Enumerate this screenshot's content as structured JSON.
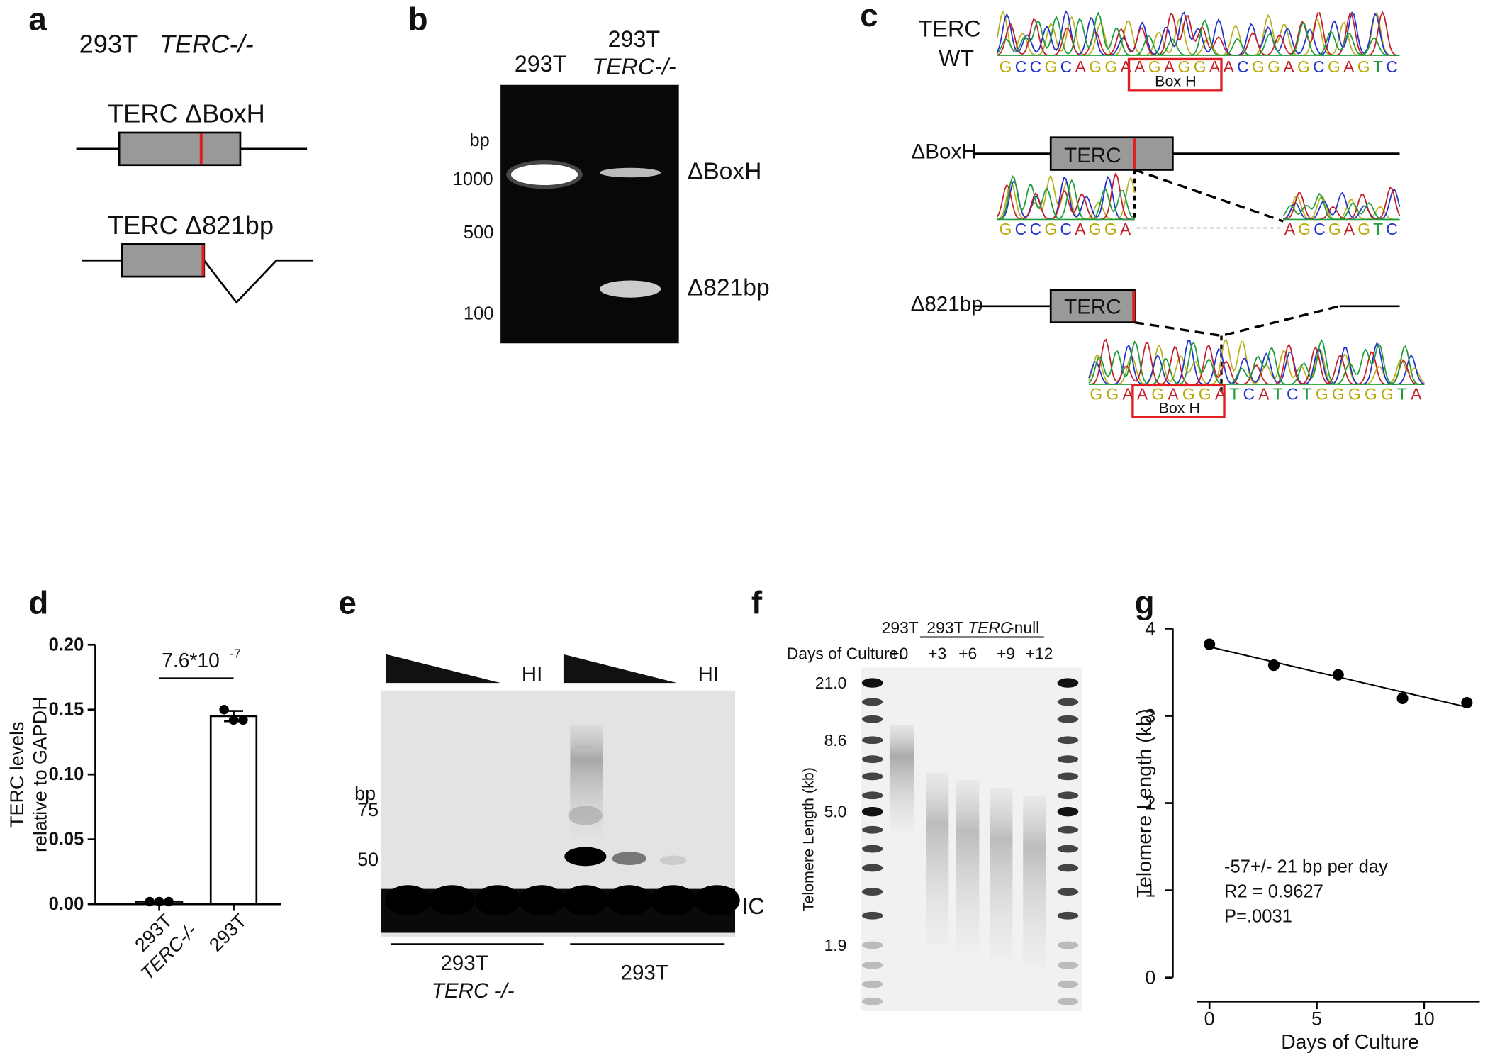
{
  "panels": {
    "a": {
      "label": "a",
      "title": "293T",
      "title_italic": "TERC-/-",
      "constructs": [
        "TERC ΔBoxH",
        "TERC Δ821bp"
      ]
    },
    "b": {
      "label": "b",
      "lanes": [
        "293T",
        "293T"
      ],
      "lane_sublabel": "TERC-/-",
      "unit": "bp",
      "ladder": [
        "1000",
        "500",
        "100"
      ],
      "bands": [
        "ΔBoxH",
        "Δ821bp"
      ]
    },
    "c": {
      "label": "c",
      "wt": {
        "name": [
          "TERC",
          "WT"
        ],
        "sequence": "GCCGCAGGAAGAGGAACGGAGCGAGTC",
        "box": "Box H"
      },
      "boxh": {
        "name": "ΔBoxH",
        "gene": "TERC",
        "sequence_left": "GCCGCAGGA",
        "sequence_right": "AGCGAGTC"
      },
      "del821": {
        "name": "Δ821bp",
        "gene": "TERC",
        "sequence": "GGAAGAGGATCATCTGGGGGTA",
        "box": "Box H"
      }
    },
    "e": {
      "label": "e",
      "heat_inactivated": [
        "HI",
        "HI"
      ],
      "unit": "bp",
      "ladder": [
        "75",
        "50"
      ],
      "control": "IC",
      "groups": [
        "293T",
        "293T"
      ],
      "group_sublabel": "TERC -/-"
    },
    "f": {
      "label": "f",
      "lanes_title": [
        "293T",
        "293T",
        "TERC",
        "-null"
      ],
      "days_label": "Days of Culture:",
      "days": [
        "+0",
        "+3",
        "+6",
        "+9",
        "+12"
      ],
      "ylabel": "Telomere Length (kb)",
      "ladder": [
        "21.0",
        "8.6",
        "5.0",
        "1.9"
      ]
    }
  },
  "chart_data": [
    {
      "panel_label": "d",
      "type": "bar",
      "ylabel": [
        "TERC levels",
        "relative to GAPDH"
      ],
      "categories": [
        [
          "293T",
          "TERC-/-"
        ],
        [
          "293T"
        ]
      ],
      "values": [
        0.002,
        0.145
      ],
      "errors": [
        0.0005,
        0.004
      ],
      "points": [
        [
          0.002,
          0.002,
          0.002
        ],
        [
          0.15,
          0.142,
          0.142
        ]
      ],
      "color": "#ffffff",
      "ylim": [
        0,
        0.2
      ],
      "yticks": [
        {
          "value": 0,
          "label": "0.00"
        },
        {
          "value": 0.05,
          "label": "0.05"
        },
        {
          "value": 0.1,
          "label": "0.10"
        },
        {
          "value": 0.15,
          "label": "0.15"
        },
        {
          "value": 0.2,
          "label": "0.20"
        }
      ],
      "annotation": {
        "text": "7.6*10",
        "superscript": "-7"
      }
    },
    {
      "panel_label": "g",
      "type": "scatter",
      "xlabel": "Days of Culture",
      "ylabel": "Telomere  Length  (kb)",
      "x": [
        0,
        3,
        6,
        9,
        12
      ],
      "y": [
        3.82,
        3.58,
        3.47,
        3.2,
        3.15
      ],
      "color": "#000000",
      "fit": {
        "x": [
          0,
          12
        ],
        "y": [
          3.79,
          3.1
        ]
      },
      "xlim": [
        -0.6,
        12.6
      ],
      "ylim": [
        0,
        4
      ],
      "xticks": [
        0,
        5,
        10
      ],
      "yticks": [
        0,
        1,
        2,
        3,
        4
      ],
      "annotations": [
        "-57+/- 21 bp per day",
        "R2 = 0.9627",
        "P=.0031"
      ]
    }
  ]
}
